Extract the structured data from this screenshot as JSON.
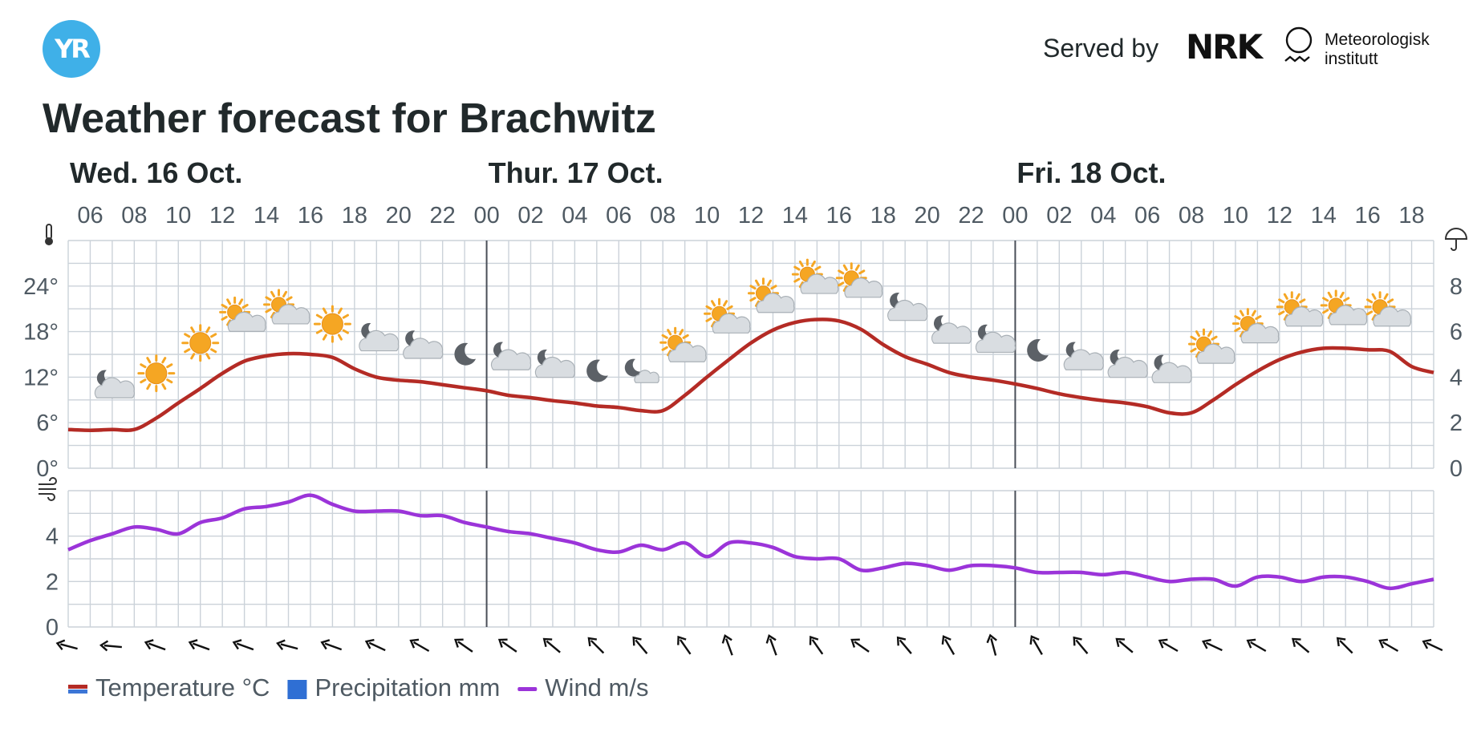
{
  "header": {
    "logo_text": "YR",
    "served_by": "Served by",
    "nrk_logo_text": "NRK",
    "met_line1": "Meteorologisk",
    "met_line2": "institutt"
  },
  "title": "Weather forecast for Brachwitz",
  "chart_data": {
    "type": "line",
    "days": [
      {
        "label": "Wed. 16 Oct.",
        "start_hour": 6
      },
      {
        "label": "Thur. 17 Oct.",
        "start_hour": 24
      },
      {
        "label": "Fri. 18 Oct.",
        "start_hour": 48
      }
    ],
    "x_range_hours": [
      5,
      67
    ],
    "hour_tick_labels": [
      "06",
      "08",
      "10",
      "12",
      "14",
      "16",
      "18",
      "20",
      "22",
      "00",
      "02",
      "04",
      "06",
      "08",
      "10",
      "12",
      "14",
      "16",
      "18",
      "20",
      "22",
      "00",
      "02",
      "04",
      "06",
      "08",
      "10",
      "12",
      "14",
      "16",
      "18"
    ],
    "temperature_axis": {
      "ticks": [
        "0°",
        "6°",
        "12°",
        "18°",
        "24°"
      ],
      "range": [
        0,
        30
      ]
    },
    "precipitation_axis": {
      "ticks": [
        "0",
        "2",
        "4",
        "6",
        "8"
      ],
      "range": [
        0,
        10
      ]
    },
    "wind_axis": {
      "ticks": [
        "0",
        "2",
        "4"
      ],
      "range": [
        0,
        6
      ]
    },
    "series": [
      {
        "name": "Temperature °C",
        "color": "#b42b25",
        "x": [
          5,
          6,
          7,
          8,
          9,
          10,
          11,
          12,
          13,
          14,
          15,
          16,
          17,
          18,
          19,
          20,
          21,
          22,
          23,
          24,
          25,
          26,
          27,
          28,
          29,
          30,
          31,
          32,
          33,
          34,
          35,
          36,
          37,
          38,
          39,
          40,
          41,
          42,
          43,
          44,
          45,
          46,
          47,
          48,
          49,
          50,
          51,
          52,
          53,
          54,
          55,
          56,
          57,
          58,
          59,
          60,
          61,
          62,
          63,
          64,
          65,
          66,
          67
        ],
        "values": [
          5.1,
          5.0,
          5.1,
          5.1,
          6.6,
          8.6,
          10.5,
          12.5,
          14.1,
          14.8,
          15.1,
          15.0,
          14.6,
          13.1,
          12.0,
          11.6,
          11.4,
          11.0,
          10.6,
          10.2,
          9.6,
          9.3,
          8.9,
          8.6,
          8.2,
          8.0,
          7.6,
          7.6,
          9.6,
          12.0,
          14.3,
          16.5,
          18.2,
          19.2,
          19.6,
          19.4,
          18.3,
          16.3,
          14.7,
          13.7,
          12.6,
          12.0,
          11.6,
          11.1,
          10.5,
          9.8,
          9.3,
          8.9,
          8.6,
          8.1,
          7.3,
          7.3,
          9.0,
          11.0,
          12.8,
          14.3,
          15.3,
          15.8,
          15.8,
          15.6,
          15.4,
          13.4,
          12.6
        ]
      },
      {
        "name": "Precipitation mm",
        "color": "#2f6fd4",
        "x": [],
        "values": []
      },
      {
        "name": "Wind m/s",
        "color": "#9b34d9",
        "x": [
          5,
          6,
          7,
          8,
          9,
          10,
          11,
          12,
          13,
          14,
          15,
          16,
          17,
          18,
          19,
          20,
          21,
          22,
          23,
          24,
          25,
          26,
          27,
          28,
          29,
          30,
          31,
          32,
          33,
          34,
          35,
          36,
          37,
          38,
          39,
          40,
          41,
          42,
          43,
          44,
          45,
          46,
          47,
          48,
          49,
          50,
          51,
          52,
          53,
          54,
          55,
          56,
          57,
          58,
          59,
          60,
          61,
          62,
          63,
          64,
          65,
          66,
          67
        ],
        "values": [
          3.4,
          3.8,
          4.1,
          4.4,
          4.3,
          4.1,
          4.6,
          4.8,
          5.2,
          5.3,
          5.5,
          5.8,
          5.4,
          5.1,
          5.1,
          5.1,
          4.9,
          4.9,
          4.6,
          4.4,
          4.2,
          4.1,
          3.9,
          3.7,
          3.4,
          3.3,
          3.6,
          3.4,
          3.7,
          3.1,
          3.7,
          3.7,
          3.5,
          3.1,
          3.0,
          3.0,
          2.5,
          2.6,
          2.8,
          2.7,
          2.5,
          2.7,
          2.7,
          2.6,
          2.4,
          2.4,
          2.4,
          2.3,
          2.4,
          2.2,
          2.0,
          2.1,
          2.1,
          1.8,
          2.2,
          2.2,
          2.0,
          2.2,
          2.2,
          2.0,
          1.7,
          1.9,
          2.1
        ]
      }
    ],
    "weather_symbols": [
      {
        "hour": 7,
        "temp": 10.8,
        "symbol": "partlycloudy-night"
      },
      {
        "hour": 9,
        "temp": 12.5,
        "symbol": "clearsky-day"
      },
      {
        "hour": 11,
        "temp": 16.5,
        "symbol": "clearsky-day"
      },
      {
        "hour": 13,
        "temp": 19.5,
        "symbol": "fair-day"
      },
      {
        "hour": 15,
        "temp": 20.5,
        "symbol": "fair-day"
      },
      {
        "hour": 17,
        "temp": 19.0,
        "symbol": "clearsky-day"
      },
      {
        "hour": 19,
        "temp": 17.0,
        "symbol": "partlycloudy-night"
      },
      {
        "hour": 21,
        "temp": 16.0,
        "symbol": "partlycloudy-night"
      },
      {
        "hour": 23,
        "temp": 15.0,
        "symbol": "clearsky-night"
      },
      {
        "hour": 25,
        "temp": 14.5,
        "symbol": "partlycloudy-night"
      },
      {
        "hour": 27,
        "temp": 13.5,
        "symbol": "partlycloudy-night"
      },
      {
        "hour": 29,
        "temp": 12.8,
        "symbol": "clearsky-night"
      },
      {
        "hour": 31,
        "temp": 12.8,
        "symbol": "fair-night"
      },
      {
        "hour": 33,
        "temp": 15.5,
        "symbol": "fair-day"
      },
      {
        "hour": 35,
        "temp": 19.3,
        "symbol": "fair-day"
      },
      {
        "hour": 37,
        "temp": 22.0,
        "symbol": "fair-day"
      },
      {
        "hour": 39,
        "temp": 24.5,
        "symbol": "fair-day"
      },
      {
        "hour": 41,
        "temp": 24.0,
        "symbol": "fair-day"
      },
      {
        "hour": 43,
        "temp": 21.0,
        "symbol": "partlycloudy-night"
      },
      {
        "hour": 45,
        "temp": 18.0,
        "symbol": "partlycloudy-night"
      },
      {
        "hour": 47,
        "temp": 16.8,
        "symbol": "partlycloudy-night"
      },
      {
        "hour": 49,
        "temp": 15.5,
        "symbol": "clearsky-night"
      },
      {
        "hour": 51,
        "temp": 14.5,
        "symbol": "partlycloudy-night"
      },
      {
        "hour": 53,
        "temp": 13.5,
        "symbol": "partlycloudy-night"
      },
      {
        "hour": 55,
        "temp": 12.8,
        "symbol": "partlycloudy-night"
      },
      {
        "hour": 57,
        "temp": 15.3,
        "symbol": "fair-day"
      },
      {
        "hour": 59,
        "temp": 18.0,
        "symbol": "fair-day"
      },
      {
        "hour": 61,
        "temp": 20.2,
        "symbol": "fair-day"
      },
      {
        "hour": 63,
        "temp": 20.4,
        "symbol": "fair-day"
      },
      {
        "hour": 65,
        "temp": 20.2,
        "symbol": "fair-day"
      }
    ],
    "wind_directions_from_deg": [
      {
        "hour": 5,
        "deg": 105
      },
      {
        "hour": 7,
        "deg": 95
      },
      {
        "hour": 9,
        "deg": 110
      },
      {
        "hour": 11,
        "deg": 110
      },
      {
        "hour": 13,
        "deg": 110
      },
      {
        "hour": 15,
        "deg": 105
      },
      {
        "hour": 17,
        "deg": 110
      },
      {
        "hour": 19,
        "deg": 115
      },
      {
        "hour": 21,
        "deg": 120
      },
      {
        "hour": 23,
        "deg": 125
      },
      {
        "hour": 25,
        "deg": 125
      },
      {
        "hour": 27,
        "deg": 130
      },
      {
        "hour": 29,
        "deg": 135
      },
      {
        "hour": 31,
        "deg": 140
      },
      {
        "hour": 33,
        "deg": 145
      },
      {
        "hour": 35,
        "deg": 160
      },
      {
        "hour": 37,
        "deg": 160
      },
      {
        "hour": 39,
        "deg": 145
      },
      {
        "hour": 41,
        "deg": 125
      },
      {
        "hour": 43,
        "deg": 140
      },
      {
        "hour": 45,
        "deg": 150
      },
      {
        "hour": 47,
        "deg": 165
      },
      {
        "hour": 49,
        "deg": 150
      },
      {
        "hour": 51,
        "deg": 140
      },
      {
        "hour": 53,
        "deg": 130
      },
      {
        "hour": 55,
        "deg": 120
      },
      {
        "hour": 57,
        "deg": 115
      },
      {
        "hour": 59,
        "deg": 120
      },
      {
        "hour": 61,
        "deg": 130
      },
      {
        "hour": 63,
        "deg": 135
      },
      {
        "hour": 65,
        "deg": 120
      },
      {
        "hour": 67,
        "deg": 115
      }
    ],
    "legend": {
      "placement": "bottom-left",
      "items": [
        {
          "label": "Temperature °C",
          "swatch": "temperature"
        },
        {
          "label": "Precipitation mm",
          "swatch": "precipitation"
        },
        {
          "label": "Wind m/s",
          "swatch": "wind"
        }
      ]
    },
    "grid": true
  },
  "colors": {
    "grid": "#cbd2d9",
    "day_divider": "#4a4f58",
    "axis_text": "#4f5a63",
    "sun": "#f5a623",
    "moon": "#5c6167",
    "cloud": "#d9dde1"
  }
}
